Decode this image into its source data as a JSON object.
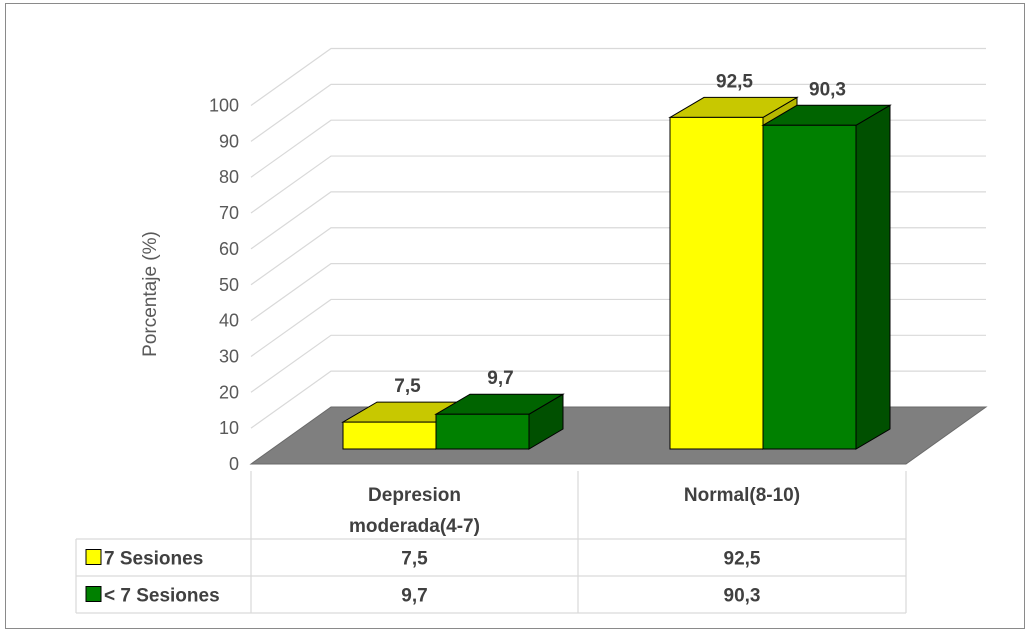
{
  "chart_data": {
    "type": "bar",
    "ylabel": "Porcentaje (%)",
    "xlabel": "",
    "ylim": [
      0,
      100
    ],
    "yticks": [
      0,
      10,
      20,
      30,
      40,
      50,
      60,
      70,
      80,
      90,
      100
    ],
    "categories": [
      "Depresion moderada(4-7)",
      "Normal(8-10)"
    ],
    "category_lines": [
      [
        "Depresion",
        "moderada(4-7)"
      ],
      [
        "Normal(8-10)"
      ]
    ],
    "series": [
      {
        "name": "7 Sesiones",
        "values": [
          7.5,
          92.5
        ],
        "labels": [
          "7,5",
          "92,5"
        ],
        "color": "#ffff00",
        "top_color": "#c8c800",
        "side_color": "#b8b800"
      },
      {
        "name": "< 7 Sesiones",
        "values": [
          9.7,
          90.3
        ],
        "labels": [
          "9,7",
          "90,3"
        ],
        "color": "#008000",
        "top_color": "#006400",
        "side_color": "#005000"
      }
    ],
    "floor_color": "#7f7f7f",
    "grid": true,
    "legend": "data-table",
    "data_table": true
  }
}
